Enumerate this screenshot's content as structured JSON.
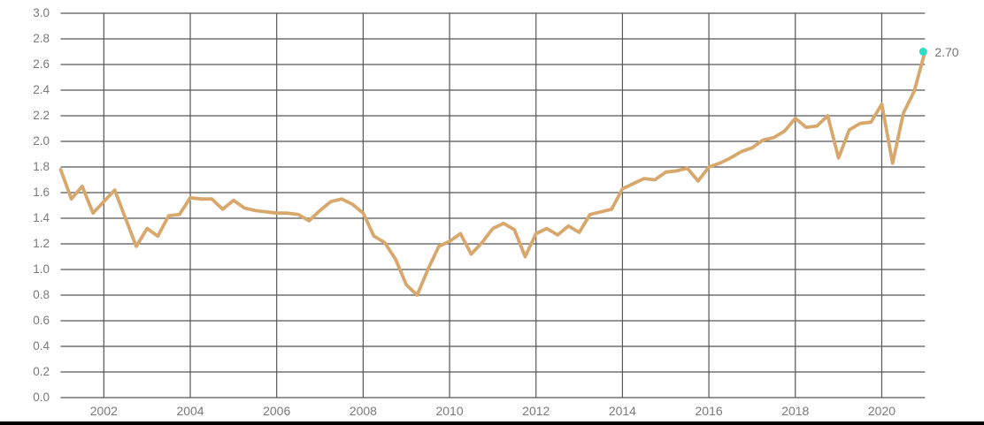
{
  "chart_data": {
    "type": "line",
    "title": "",
    "xlabel": "",
    "ylabel": "",
    "x_start_year": 2001,
    "x_end_year": 2021,
    "points_per_year": 4,
    "ylim": [
      0.0,
      3.0
    ],
    "y_step": 0.2,
    "grid": true,
    "y_tick_labels": [
      "3.0",
      "2.8",
      "2.6",
      "2.4",
      "2.2",
      "2.0",
      "1.8",
      "1.6",
      "1.4",
      "1.2",
      "1.0",
      "0.8",
      "0.6",
      "0.4",
      "0.2",
      "0.0"
    ],
    "x_tick_labels": [
      "2002",
      "2004",
      "2006",
      "2008",
      "2010",
      "2012",
      "2014",
      "2016",
      "2018",
      "2020"
    ],
    "series": [
      {
        "name": "value",
        "color": "#d8a76c",
        "values": [
          1.78,
          1.55,
          1.65,
          1.44,
          1.53,
          1.62,
          1.4,
          1.18,
          1.32,
          1.26,
          1.42,
          1.43,
          1.56,
          1.55,
          1.55,
          1.47,
          1.54,
          1.48,
          1.46,
          1.45,
          1.44,
          1.44,
          1.43,
          1.38,
          1.46,
          1.53,
          1.55,
          1.51,
          1.44,
          1.26,
          1.21,
          1.08,
          0.88,
          0.8,
          1.0,
          1.18,
          1.22,
          1.28,
          1.12,
          1.21,
          1.32,
          1.36,
          1.31,
          1.1,
          1.28,
          1.32,
          1.27,
          1.34,
          1.29,
          1.43,
          1.45,
          1.47,
          1.63,
          1.67,
          1.71,
          1.7,
          1.76,
          1.77,
          1.79,
          1.69,
          1.8,
          1.83,
          1.87,
          1.92,
          1.95,
          2.01,
          2.03,
          2.08,
          2.18,
          2.11,
          2.12,
          2.2,
          1.87,
          2.09,
          2.14,
          2.15,
          2.29,
          1.83,
          2.22,
          2.39,
          2.7
        ]
      }
    ],
    "end_marker": {
      "value": 2.7,
      "label": "2.70",
      "color": "#2adfc4"
    },
    "colors": {
      "grid": "#565656",
      "tick_text": "#7a7a7a",
      "background": "#ffffff",
      "bottom_bar": "#000000"
    }
  }
}
